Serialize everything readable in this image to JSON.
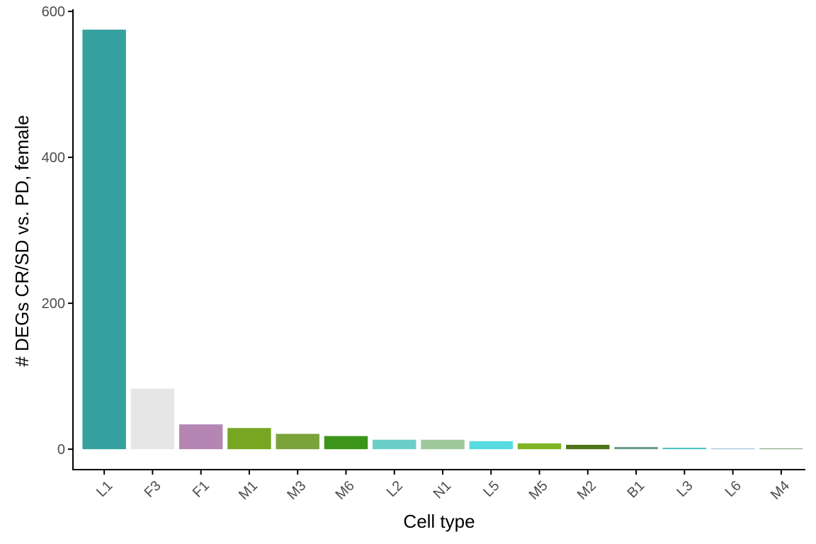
{
  "chart_data": {
    "type": "bar",
    "xlabel": "Cell type",
    "ylabel": "# DEGs CR/SD vs. PD, female",
    "categories": [
      "L1",
      "F3",
      "F1",
      "M1",
      "M3",
      "M6",
      "L2",
      "N1",
      "L5",
      "M5",
      "M2",
      "B1",
      "L3",
      "L6",
      "M4"
    ],
    "values": [
      575,
      83,
      34,
      29,
      21,
      18,
      13,
      13,
      11,
      8,
      6,
      3,
      2,
      1,
      1
    ],
    "colors": [
      "#35a19f",
      "#e6e6e6",
      "#b586b4",
      "#77a623",
      "#7aa339",
      "#3c9418",
      "#6bcec9",
      "#9dc89b",
      "#59dcdf",
      "#7fb524",
      "#4e7318",
      "#6b9a86",
      "#47c2c0",
      "#8fbcd6",
      "#7ea07a"
    ],
    "yticks": [
      0,
      200,
      400,
      600
    ],
    "ylim": [
      -28,
      603
    ],
    "grid": false,
    "legend": "none"
  }
}
